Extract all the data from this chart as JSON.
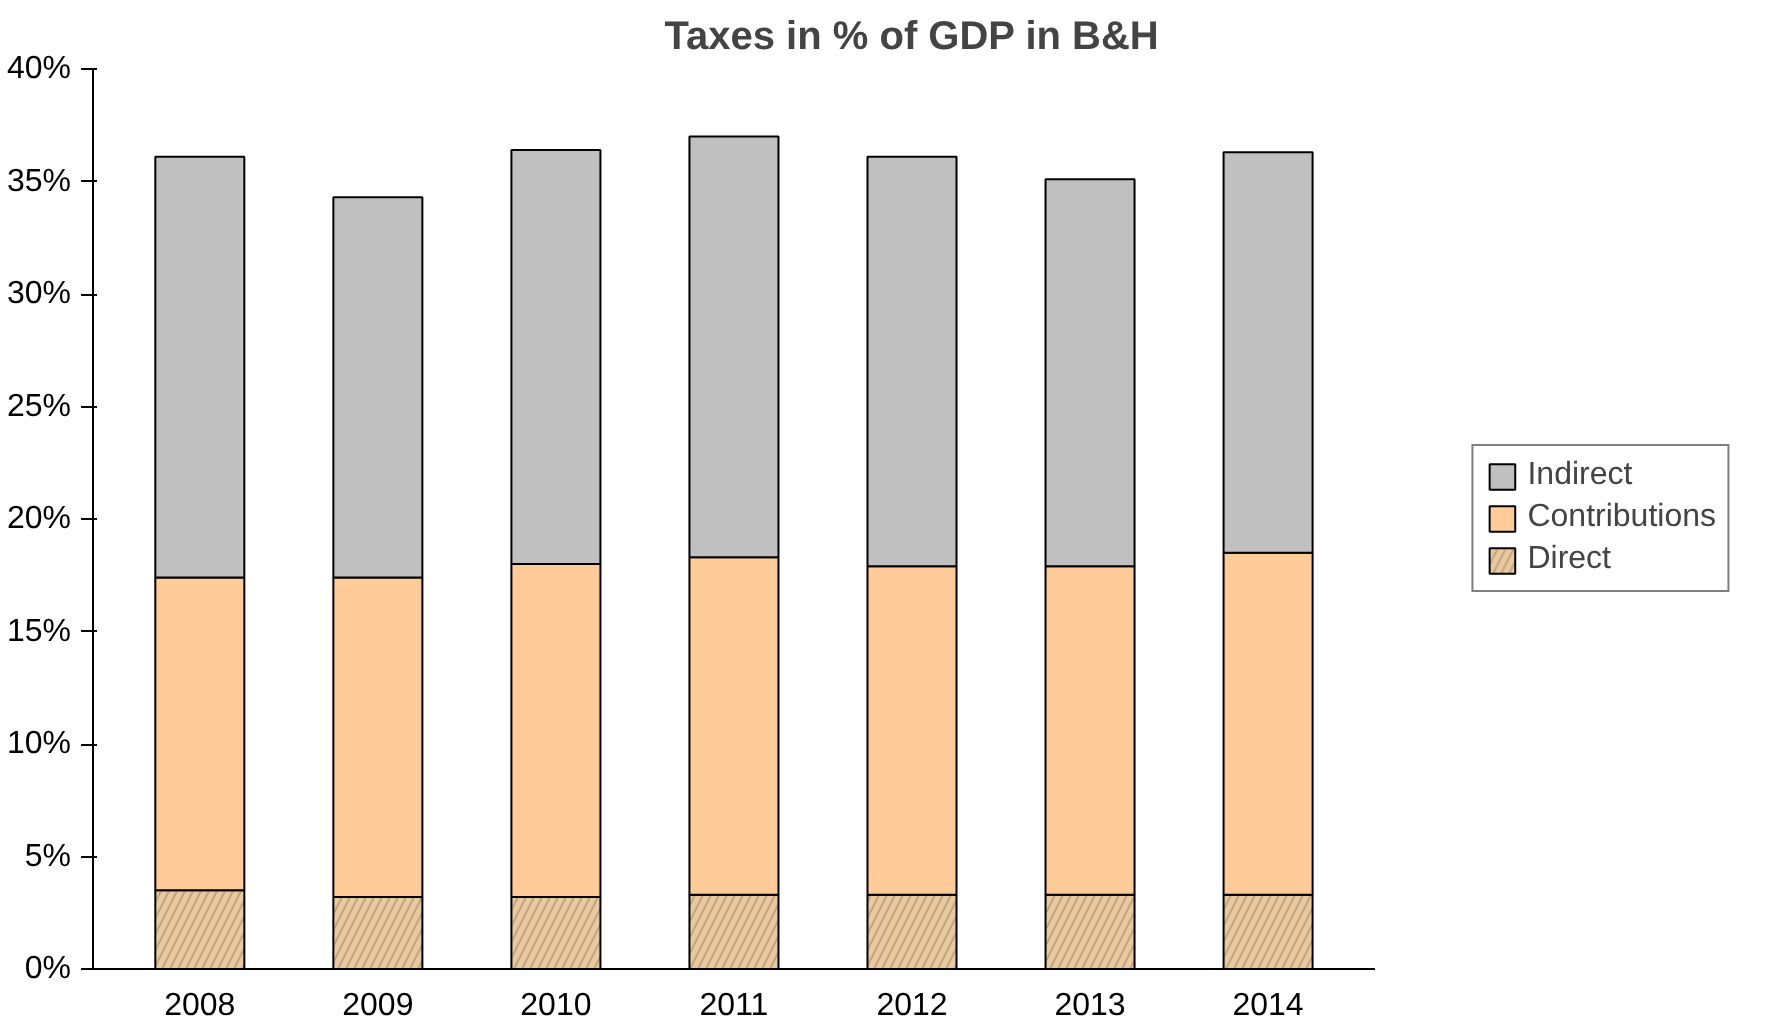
{
  "chart_data": {
    "type": "bar",
    "title": "Taxes in % of GDP in B&H",
    "stacked": true,
    "categories": [
      "2008",
      "2009",
      "2010",
      "2011",
      "2012",
      "2013",
      "2014"
    ],
    "series": [
      {
        "name": "Direct",
        "color": "#e8c9a0",
        "values": [
          3.5,
          3.2,
          3.2,
          3.3,
          3.3,
          3.3,
          3.3
        ]
      },
      {
        "name": "Contributions",
        "color": "#ffcc99",
        "values": [
          13.9,
          14.2,
          14.8,
          15.0,
          14.6,
          14.6,
          15.2
        ]
      },
      {
        "name": "Indirect",
        "color": "#c0c0c0",
        "values": [
          18.7,
          16.9,
          18.4,
          18.7,
          18.2,
          17.2,
          17.8
        ]
      }
    ],
    "ylim": [
      0,
      40
    ],
    "yticks": [
      {
        "value": 0,
        "label": "0%"
      },
      {
        "value": 5,
        "label": "5%"
      },
      {
        "value": 10,
        "label": "10%"
      },
      {
        "value": 15,
        "label": "15%"
      },
      {
        "value": 20,
        "label": "20%"
      },
      {
        "value": 25,
        "label": "25%"
      },
      {
        "value": 30,
        "label": "30%"
      },
      {
        "value": 35,
        "label": "35%"
      },
      {
        "value": 40,
        "label": "40%"
      }
    ],
    "grid": false,
    "legend": "right"
  }
}
